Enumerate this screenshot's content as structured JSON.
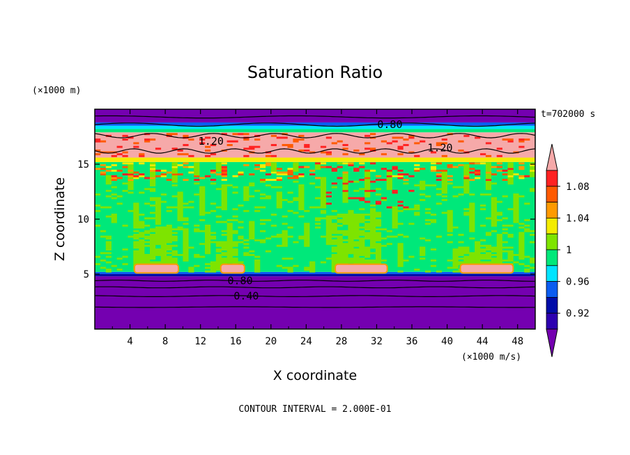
{
  "chart_data": {
    "type": "heatmap",
    "title": "Saturation Ratio",
    "xlabel": "X coordinate",
    "ylabel": "Z coordinate",
    "x_unit": "(×1000 m/s)",
    "y_unit": "(×1000 m)",
    "time_label": "t=702000 s",
    "footer": "CONTOUR INTERVAL = 2.000E-01",
    "xlim": [
      0,
      50
    ],
    "ylim": [
      0,
      20
    ],
    "x_ticks": [
      4,
      8,
      12,
      16,
      20,
      24,
      28,
      32,
      36,
      40,
      44,
      48
    ],
    "y_ticks": [
      5,
      10,
      15
    ],
    "colorbar": {
      "levels": [
        0.92,
        0.96,
        1,
        1.04,
        1.08
      ],
      "tick_labels": [
        "0.92",
        "0.96",
        "1",
        "1.04",
        "1.08"
      ],
      "colors": [
        "#7400b0",
        "#2d00b0",
        "#000ca8",
        "#0b5cf0",
        "#00e4ff",
        "#00e87a",
        "#7ee400",
        "#f4ec00",
        "#ff9a00",
        "#ff5a00",
        "#ff2222",
        "#f6a9a9"
      ]
    },
    "contour_labels": [
      {
        "text": "0.80",
        "x": 33.5,
        "z": 18.6
      },
      {
        "text": "1.20",
        "x": 13.2,
        "z": 17.1
      },
      {
        "text": "1.20",
        "x": 39.2,
        "z": 16.5
      },
      {
        "text": "0.80",
        "x": 16.5,
        "z": 4.4
      },
      {
        "text": "0.40",
        "x": 17.2,
        "z": 3.0
      }
    ]
  }
}
